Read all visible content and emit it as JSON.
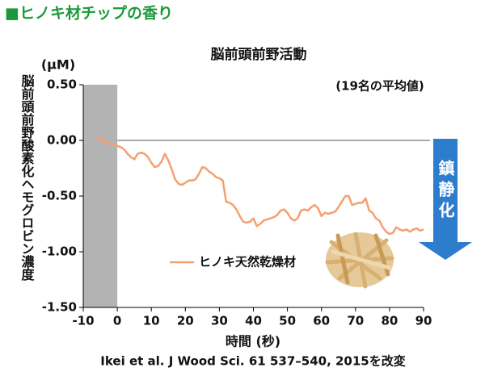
{
  "heading": "■ヒノキ材チップの香り",
  "chart_data": {
    "type": "line",
    "title": "脳前頭前野活動",
    "unit_label": "(μM)",
    "annotation": "(19名の平均値)",
    "ylabel": "脳前頭前野酸素化ヘモグロビン濃度",
    "xlabel": "時間 (秒)",
    "arrow_label": "鎮静化",
    "source": "Ikei et al.  J Wood Sci. 61 537–540, 2015を改変",
    "xlim": [
      -10,
      90
    ],
    "xticks": [
      -10,
      0,
      10,
      20,
      30,
      40,
      50,
      60,
      70,
      80,
      90
    ],
    "ylim": [
      -1.5,
      0.5
    ],
    "yticks": [
      {
        "value": 0.5,
        "label": "0.50"
      },
      {
        "value": 0,
        "label": "0.00"
      },
      {
        "value": -0.5,
        "label": "-0.50"
      },
      {
        "value": -1,
        "label": "-1.00"
      },
      {
        "value": -1.5,
        "label": "-1.50"
      }
    ],
    "shaded_region": [
      -10,
      0
    ],
    "reference_line": 0,
    "legend": "lower-left",
    "x": [
      -5,
      -4,
      -3,
      -2,
      -1,
      0,
      1,
      2,
      3,
      4,
      5,
      6,
      7,
      8,
      9,
      10,
      11,
      12,
      13,
      14,
      15,
      16,
      17,
      18,
      19,
      20,
      21,
      22,
      23,
      24,
      25,
      26,
      27,
      28,
      29,
      30,
      31,
      32,
      33,
      34,
      35,
      36,
      37,
      38,
      39,
      40,
      41,
      42,
      43,
      44,
      45,
      46,
      47,
      48,
      49,
      50,
      51,
      52,
      53,
      54,
      55,
      56,
      57,
      58,
      59,
      60,
      61,
      62,
      63,
      64,
      65,
      66,
      67,
      68,
      69,
      70,
      71,
      72,
      73,
      74,
      75,
      76,
      77,
      78,
      79,
      80,
      81,
      82,
      83,
      84,
      85,
      86,
      87,
      88,
      89,
      90
    ],
    "series": [
      {
        "name": "ヒノキ天然乾燥材",
        "color": "#f4a070",
        "values": [
          0.01,
          -0.01,
          -0.02,
          -0.03,
          -0.04,
          -0.05,
          -0.06,
          -0.08,
          -0.12,
          -0.15,
          -0.17,
          -0.12,
          -0.11,
          -0.12,
          -0.15,
          -0.2,
          -0.24,
          -0.23,
          -0.19,
          -0.12,
          -0.18,
          -0.26,
          -0.35,
          -0.39,
          -0.4,
          -0.38,
          -0.36,
          -0.36,
          -0.35,
          -0.3,
          -0.24,
          -0.25,
          -0.28,
          -0.3,
          -0.33,
          -0.34,
          -0.36,
          -0.55,
          -0.56,
          -0.58,
          -0.62,
          -0.68,
          -0.73,
          -0.74,
          -0.73,
          -0.7,
          -0.77,
          -0.75,
          -0.72,
          -0.71,
          -0.7,
          -0.69,
          -0.67,
          -0.63,
          -0.62,
          -0.65,
          -0.7,
          -0.72,
          -0.7,
          -0.63,
          -0.62,
          -0.63,
          -0.6,
          -0.58,
          -0.61,
          -0.68,
          -0.65,
          -0.66,
          -0.65,
          -0.64,
          -0.6,
          -0.55,
          -0.5,
          -0.5,
          -0.58,
          -0.57,
          -0.56,
          -0.56,
          -0.52,
          -0.63,
          -0.65,
          -0.7,
          -0.72,
          -0.78,
          -0.82,
          -0.84,
          -0.83,
          -0.78,
          -0.8,
          -0.81,
          -0.8,
          -0.82,
          -0.8,
          -0.79,
          -0.81,
          -0.8
        ]
      }
    ]
  }
}
